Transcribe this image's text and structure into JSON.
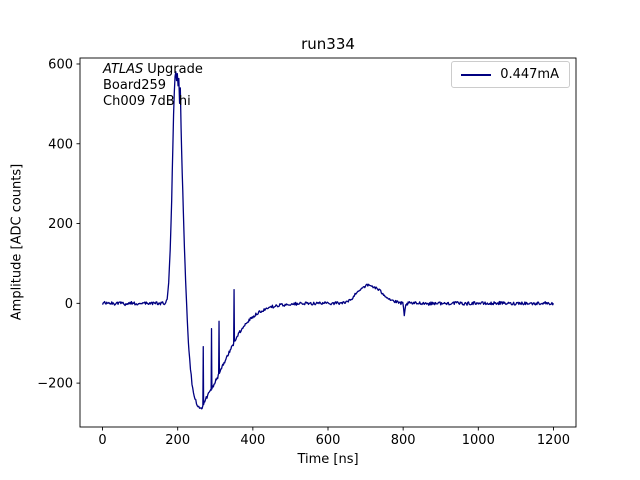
{
  "title": "run334",
  "annotation": {
    "atlas": "ATLAS",
    "upgrade": "Upgrade",
    "board": "Board259",
    "channel": "Ch009 7dB hi"
  },
  "legend": {
    "label": "0.447mA"
  },
  "colors": {
    "line": "#000080",
    "background": "#ffffff",
    "text": "#000000"
  },
  "chart_data": {
    "type": "line",
    "title": "run334",
    "xlabel": "Time [ns]",
    "ylabel": "Amplitude [ADC counts]",
    "xlim": [
      -60,
      1260
    ],
    "ylim": [
      -310,
      615
    ],
    "xticks": [
      0,
      200,
      400,
      600,
      800,
      1000,
      1200
    ],
    "yticks": [
      -200,
      0,
      200,
      400,
      600
    ],
    "grid": false,
    "legend_position": "upper right",
    "legend": [
      "0.447mA"
    ],
    "noise": 4,
    "series": [
      {
        "name": "0.447mA",
        "x": [
          0,
          15,
          30,
          45,
          60,
          75,
          90,
          105,
          120,
          135,
          150,
          160,
          168,
          172,
          176,
          180,
          184,
          187,
          189,
          191,
          193,
          195,
          197,
          199,
          201,
          203,
          205,
          207,
          209,
          212,
          215,
          218,
          221,
          224,
          227,
          230,
          234,
          238,
          242,
          246,
          250,
          254,
          258,
          262,
          265,
          267,
          268,
          269,
          272,
          276,
          280,
          284,
          288,
          289,
          290,
          291,
          295,
          300,
          305,
          308,
          309,
          310,
          311,
          315,
          320,
          325,
          330,
          335,
          340,
          345,
          348,
          349,
          350,
          351,
          355,
          360,
          365,
          370,
          375,
          380,
          385,
          390,
          395,
          400,
          410,
          420,
          430,
          440,
          450,
          460,
          470,
          480,
          500,
          520,
          540,
          560,
          580,
          600,
          620,
          640,
          650,
          658,
          666,
          674,
          682,
          690,
          698,
          706,
          714,
          722,
          730,
          738,
          746,
          754,
          762,
          770,
          778,
          786,
          792,
          796,
          799,
          801,
          803,
          805,
          807,
          810,
          815,
          830,
          850,
          870,
          890,
          910,
          930,
          950,
          970,
          990,
          1010,
          1030,
          1050,
          1070,
          1090,
          1110,
          1130,
          1150,
          1170,
          1190,
          1200
        ],
        "y": [
          0,
          1,
          -1,
          2,
          -2,
          1,
          -1,
          2,
          -1,
          1,
          -1,
          0,
          0,
          10,
          50,
          130,
          260,
          390,
          470,
          530,
          570,
          582,
          560,
          578,
          545,
          560,
          500,
          540,
          440,
          330,
          230,
          140,
          60,
          -10,
          -70,
          -120,
          -165,
          -200,
          -222,
          -238,
          -250,
          -257,
          -261,
          -262,
          -260,
          -256,
          -105,
          -252,
          -246,
          -238,
          -231,
          -224,
          -218,
          -216,
          -62,
          -213,
          -206,
          -196,
          -187,
          -182,
          -180,
          -45,
          -177,
          -168,
          -156,
          -146,
          -136,
          -126,
          -117,
          -108,
          -102,
          -100,
          33,
          -97,
          -88,
          -80,
          -72,
          -65,
          -58,
          -52,
          -47,
          -42,
          -37,
          -33,
          -26,
          -20,
          -16,
          -12,
          -9,
          -7,
          -5,
          -4,
          -2,
          -1,
          -1,
          0,
          0,
          0,
          1,
          1,
          3,
          7,
          14,
          24,
          33,
          39,
          43,
          45,
          44,
          41,
          37,
          31,
          25,
          18,
          12,
          8,
          4,
          2,
          1,
          0,
          -1,
          -14,
          -32,
          -18,
          -6,
          -1,
          0,
          0,
          1,
          -1,
          1,
          -1,
          1,
          0,
          -1,
          1,
          0,
          -1,
          1,
          0,
          -1,
          1,
          0,
          -1,
          1,
          0,
          0
        ]
      }
    ]
  }
}
